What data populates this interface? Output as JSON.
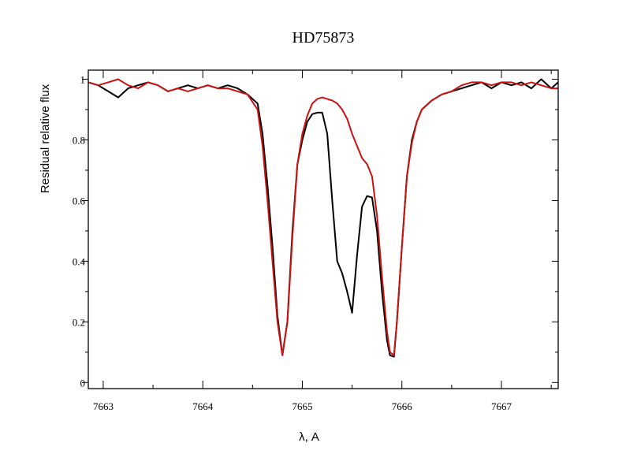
{
  "chart_data": {
    "type": "line",
    "title": "HD75873",
    "xlabel": "λ, A",
    "ylabel": "Residual relative flux",
    "xlim": [
      7662.85,
      7667.57
    ],
    "ylim": [
      -0.02,
      1.03
    ],
    "x_ticks": [
      7663,
      7664,
      7665,
      7666,
      7667
    ],
    "x_tick_labels": [
      "7663",
      "7664",
      "7665",
      "7666",
      "7667"
    ],
    "y_ticks": [
      0,
      0.2,
      0.4,
      0.6,
      0.8,
      1
    ],
    "y_tick_labels": [
      "0",
      "0.2",
      "0.4",
      "0.6",
      "0.8",
      "1"
    ],
    "grid": false,
    "legend": false,
    "series": [
      {
        "color": "#000000",
        "x": [
          7662.85,
          7662.95,
          7663.05,
          7663.15,
          7663.25,
          7663.35,
          7663.45,
          7663.55,
          7663.65,
          7663.75,
          7663.85,
          7663.95,
          7664.05,
          7664.15,
          7664.25,
          7664.35,
          7664.45,
          7664.55,
          7664.6,
          7664.65,
          7664.7,
          7664.75,
          7664.8,
          7664.85,
          7664.9,
          7664.95,
          7665.0,
          7665.05,
          7665.1,
          7665.15,
          7665.2,
          7665.25,
          7665.3,
          7665.35,
          7665.4,
          7665.45,
          7665.5,
          7665.55,
          7665.6,
          7665.65,
          7665.7,
          7665.75,
          7665.8,
          7665.85,
          7665.88,
          7665.92,
          7665.95,
          7666.0,
          7666.05,
          7666.1,
          7666.15,
          7666.2,
          7666.3,
          7666.4,
          7666.5,
          7666.6,
          7666.7,
          7666.8,
          7666.9,
          7667.0,
          7667.1,
          7667.2,
          7667.3,
          7667.4,
          7667.5,
          7667.57
        ],
        "y": [
          0.99,
          0.98,
          0.96,
          0.94,
          0.97,
          0.98,
          0.99,
          0.98,
          0.96,
          0.97,
          0.98,
          0.97,
          0.98,
          0.97,
          0.98,
          0.97,
          0.95,
          0.92,
          0.82,
          0.65,
          0.45,
          0.22,
          0.09,
          0.2,
          0.5,
          0.72,
          0.8,
          0.86,
          0.885,
          0.89,
          0.89,
          0.82,
          0.6,
          0.4,
          0.36,
          0.3,
          0.23,
          0.42,
          0.58,
          0.615,
          0.61,
          0.5,
          0.3,
          0.14,
          0.09,
          0.085,
          0.2,
          0.45,
          0.68,
          0.8,
          0.86,
          0.9,
          0.93,
          0.95,
          0.96,
          0.97,
          0.98,
          0.99,
          0.97,
          0.99,
          0.98,
          0.99,
          0.97,
          1.0,
          0.97,
          0.99
        ]
      },
      {
        "color": "#cc1111",
        "x": [
          7662.85,
          7662.95,
          7663.05,
          7663.15,
          7663.25,
          7663.35,
          7663.45,
          7663.55,
          7663.65,
          7663.75,
          7663.85,
          7663.95,
          7664.05,
          7664.15,
          7664.25,
          7664.35,
          7664.45,
          7664.55,
          7664.6,
          7664.65,
          7664.7,
          7664.75,
          7664.8,
          7664.85,
          7664.9,
          7664.95,
          7665.0,
          7665.05,
          7665.1,
          7665.15,
          7665.2,
          7665.25,
          7665.3,
          7665.35,
          7665.4,
          7665.45,
          7665.5,
          7665.55,
          7665.6,
          7665.65,
          7665.7,
          7665.75,
          7665.8,
          7665.85,
          7665.88,
          7665.92,
          7665.95,
          7666.0,
          7666.05,
          7666.1,
          7666.15,
          7666.2,
          7666.3,
          7666.4,
          7666.5,
          7666.6,
          7666.7,
          7666.8,
          7666.9,
          7667.0,
          7667.1,
          7667.2,
          7667.3,
          7667.4,
          7667.5,
          7667.57
        ],
        "y": [
          0.99,
          0.98,
          0.99,
          1.0,
          0.98,
          0.97,
          0.99,
          0.98,
          0.96,
          0.97,
          0.96,
          0.97,
          0.98,
          0.97,
          0.97,
          0.96,
          0.95,
          0.9,
          0.78,
          0.6,
          0.4,
          0.2,
          0.09,
          0.2,
          0.48,
          0.72,
          0.82,
          0.88,
          0.92,
          0.935,
          0.94,
          0.935,
          0.93,
          0.92,
          0.9,
          0.87,
          0.82,
          0.78,
          0.74,
          0.72,
          0.68,
          0.55,
          0.35,
          0.17,
          0.1,
          0.09,
          0.2,
          0.45,
          0.68,
          0.79,
          0.86,
          0.9,
          0.93,
          0.95,
          0.96,
          0.98,
          0.99,
          0.99,
          0.98,
          0.99,
          0.99,
          0.98,
          0.99,
          0.98,
          0.97,
          0.97
        ]
      }
    ]
  }
}
